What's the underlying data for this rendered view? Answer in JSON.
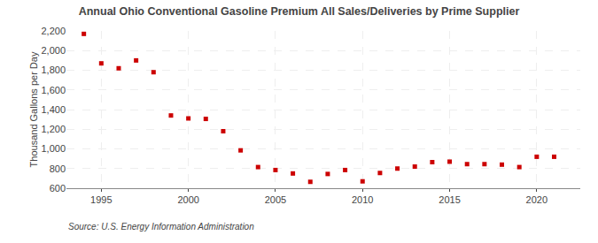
{
  "chart_data": {
    "type": "scatter",
    "title": "Annual Ohio Conventional Gasoline Premium All Sales/Deliveries by Prime Supplier",
    "ylabel": "Thousand Gallons per Day",
    "annotations": [
      "Source: U.S. Energy Information Administration"
    ],
    "x": [
      1994,
      1995,
      1996,
      1997,
      1998,
      1999,
      2000,
      2001,
      2002,
      2003,
      2004,
      2005,
      2006,
      2007,
      2008,
      2009,
      2010,
      2011,
      2012,
      2013,
      2014,
      2015,
      2016,
      2017,
      2018,
      2019,
      2020,
      2021
    ],
    "values": [
      2170,
      1870,
      1820,
      1900,
      1780,
      1340,
      1310,
      1305,
      1180,
      985,
      815,
      785,
      750,
      665,
      745,
      785,
      670,
      755,
      800,
      820,
      865,
      870,
      845,
      845,
      840,
      815,
      920,
      920
    ],
    "color": "#cc0000",
    "marker": "square",
    "xlim": [
      1993.0,
      2022.5
    ],
    "xticks": [
      1995,
      2000,
      2005,
      2010,
      2015,
      2020
    ],
    "ylim": [
      600,
      2200
    ],
    "yticks": [
      600,
      800,
      {
        "value": 1000,
        "label": "1,000"
      },
      {
        "value": 1200,
        "label": "1,200"
      },
      {
        "value": 1400,
        "label": "1,400"
      },
      {
        "value": 1600,
        "label": "1,600"
      },
      {
        "value": 1800,
        "label": "1,800"
      },
      {
        "value": 2000,
        "label": "2,000"
      },
      {
        "value": 2200,
        "label": "2,200"
      }
    ],
    "grid": true
  }
}
